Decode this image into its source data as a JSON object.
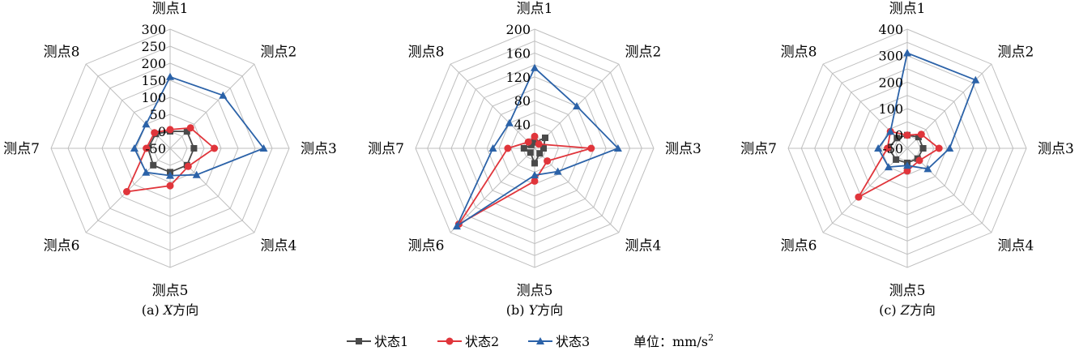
{
  "colors": {
    "series1": "#4a4a4a",
    "series2": "#e0353b",
    "series3": "#2b62a8",
    "grid": "#bfbfbf"
  },
  "legend": {
    "s1": "状态1",
    "s2": "状态2",
    "s3": "状态3",
    "unit_prefix": "单位：mm/s",
    "unit_sup": "2"
  },
  "chart_data": [
    {
      "type": "radar",
      "caption_prefix": "(a)  ",
      "caption_axis": "X",
      "caption_suffix": "方向",
      "categories": [
        "测点1",
        "测点2",
        "测点3",
        "测点4",
        "测点5",
        "测点6",
        "测点7",
        "测点8"
      ],
      "rlim": [
        -50,
        300
      ],
      "rticks": [
        -50,
        0,
        50,
        100,
        150,
        200,
        250,
        300
      ],
      "rtick_labels": [
        "-50",
        "0",
        "50",
        "100",
        "150",
        "200",
        "250",
        "300"
      ],
      "series": [
        {
          "name": "状态1",
          "marker": "square",
          "values": [
            0,
            20,
            20,
            20,
            20,
            20,
            15,
            10
          ]
        },
        {
          "name": "状态2",
          "marker": "circle",
          "values": [
            5,
            35,
            80,
            25,
            60,
            130,
            20,
            15
          ]
        },
        {
          "name": "状态3",
          "marker": "triangle",
          "values": [
            160,
            170,
            225,
            60,
            30,
            50,
            55,
            50
          ]
        }
      ]
    },
    {
      "type": "radar",
      "caption_prefix": "(b)  ",
      "caption_axis": "Y",
      "caption_suffix": "方向",
      "categories": [
        "测点1",
        "测点2",
        "测点3",
        "测点4",
        "测点5",
        "测点6",
        "测点7",
        "测点8"
      ],
      "rlim": [
        0,
        200
      ],
      "rticks": [
        0,
        20,
        40,
        60,
        80,
        100,
        120,
        140,
        160,
        180,
        200
      ],
      "rtick_labels": [
        "",
        "",
        "40",
        "",
        "80",
        "",
        "120",
        "",
        "160",
        "",
        "200"
      ],
      "series": [
        {
          "name": "状态1",
          "marker": "square",
          "values": [
            10,
            25,
            15,
            12,
            25,
            10,
            18,
            8
          ]
        },
        {
          "name": "状态2",
          "marker": "circle",
          "values": [
            20,
            10,
            95,
            30,
            55,
            180,
            45,
            15
          ]
        },
        {
          "name": "状态3",
          "marker": "triangle",
          "values": [
            135,
            100,
            140,
            55,
            45,
            185,
            70,
            60
          ]
        }
      ]
    },
    {
      "type": "radar",
      "caption_prefix": "(c)  ",
      "caption_axis": "Z",
      "caption_suffix": "方向",
      "categories": [
        "测点1",
        "测点2",
        "测点3",
        "测点4",
        "测点5",
        "测点6",
        "测点7",
        "测点8"
      ],
      "rlim": [
        -50,
        400
      ],
      "rticks": [
        -50,
        0,
        50,
        100,
        150,
        200,
        250,
        300,
        350,
        400
      ],
      "rtick_labels": [
        "-50",
        "0",
        "",
        "100",
        "",
        "200",
        "",
        "300",
        "",
        "400"
      ],
      "series": [
        {
          "name": "状态1",
          "marker": "square",
          "values": [
            0,
            10,
            10,
            5,
            5,
            10,
            20,
            5
          ]
        },
        {
          "name": "状态2",
          "marker": "circle",
          "values": [
            0,
            25,
            70,
            15,
            35,
            210,
            25,
            40
          ]
        },
        {
          "name": "状态3",
          "marker": "triangle",
          "values": [
            310,
            315,
            110,
            60,
            15,
            50,
            60,
            40
          ]
        }
      ]
    }
  ]
}
